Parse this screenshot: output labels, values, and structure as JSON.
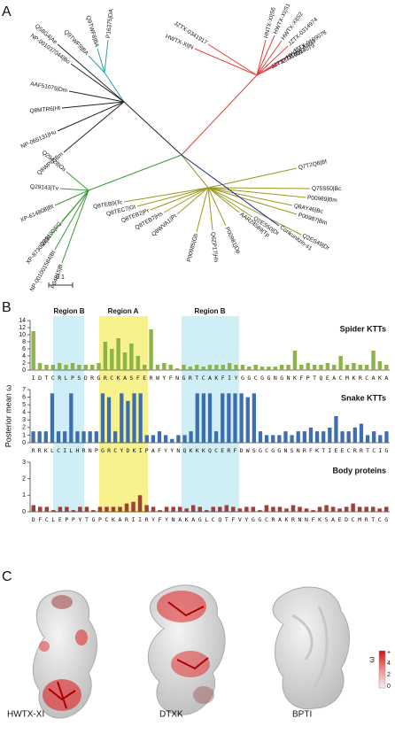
{
  "panels": {
    "a": "A",
    "b": "B",
    "c": "C"
  },
  "tree": {
    "leaves": [
      "JZTX-0341917",
      "HWTX-XI|N",
      "HNTX-XI|S6",
      "HWTX-XI|S1",
      "HWTX-XI|S2",
      "JZTX-0314974",
      "JZTX-0109078",
      "HWTX-XI|S3",
      "JZTX-0314079",
      "JZTX-0314007",
      "P16375|DA",
      "Q9TWF8|BA",
      "Q9TWF9|BA",
      "Q58G4|Ae",
      "NP-001037044|Bo",
      "AAF51075|Dm",
      "Q8MTR6|Ht",
      "NP-065131|Hu",
      "Q8WPI2|Bm",
      "Q29428|Os",
      "Q29143|Tv",
      "XP-614808|Bt",
      "Q29100|PG",
      "XP-873093|Bt",
      "NP-001001584|Bt",
      "P04815|B",
      "Q7T2Q6|Bf",
      "Q75S50|Bc",
      "P00989|Bm",
      "Q8AY46|Bc",
      "P00987|Bm",
      "Q2ES49|Dr",
      "Q2ES50|Dr",
      "AAR24589|Tp",
      "P00981|Dp",
      "Q6ZP17|Hh",
      "P00985|Gb",
      "Q8WVA1|Pt",
      "Q8TEB7|Hs",
      "Q8TEB2|Pr",
      "Q8TEC7|Gt",
      "Q8TEB9|Tc",
      "Conkunitzin-s1"
    ],
    "scale_label": "0.1"
  },
  "y_axis_label": "Posterior mean ω",
  "regions": [
    "Region B",
    "Region A",
    "Region B"
  ],
  "chart_data": [
    {
      "type": "bar",
      "title": "Spider KTTs",
      "color": "#8db34a",
      "ylim": [
        0,
        14
      ],
      "yticks": [
        0,
        2,
        4,
        6,
        8,
        10,
        12,
        14
      ],
      "categories": [
        "I",
        "D",
        "T",
        "C",
        "R",
        "L",
        "P",
        "S",
        "D",
        "R",
        "G",
        "R",
        "C",
        "K",
        "A",
        "S",
        "F",
        "E",
        "R",
        "W",
        "Y",
        "F",
        "N",
        "G",
        "R",
        "T",
        "C",
        "A",
        "K",
        "F",
        "I",
        "Y",
        "G",
        "G",
        "C",
        "G",
        "G",
        "N",
        "G",
        "N",
        "K",
        "F",
        "P",
        "T",
        "Q",
        "E",
        "A",
        "C",
        "M",
        "K",
        "R",
        "C",
        "A",
        "K",
        "A"
      ],
      "values": [
        11,
        2,
        1.5,
        1.5,
        2,
        1.5,
        2,
        1.5,
        1.5,
        1.5,
        2,
        8,
        6,
        9,
        5,
        7.5,
        4,
        1.5,
        11.5,
        1.5,
        2,
        1.5,
        0.5,
        1.5,
        1,
        1.5,
        1,
        1.5,
        1.5,
        1.5,
        2,
        1.5,
        1.5,
        1,
        1.5,
        1,
        1,
        1,
        1.5,
        1.5,
        5.5,
        1.5,
        2,
        1.5,
        1.5,
        2,
        1.5,
        4,
        1.5,
        2,
        1.5,
        1.5,
        5.5,
        2.5,
        1.5
      ]
    },
    {
      "type": "bar",
      "title": "Snake KTTs",
      "color": "#3d6fb0",
      "ylim": [
        0,
        7
      ],
      "yticks": [
        0,
        1,
        2,
        3,
        4,
        5,
        6,
        7
      ],
      "categories": [
        "R",
        "R",
        "K",
        "L",
        "C",
        "I",
        "L",
        "H",
        "R",
        "N",
        "P",
        "G",
        "R",
        "C",
        "Y",
        "D",
        "K",
        "I",
        "P",
        "A",
        "F",
        "Y",
        "Y",
        "N",
        "Q",
        "K",
        "K",
        "K",
        "Q",
        "C",
        "E",
        "R",
        "F",
        "D",
        "W",
        "S",
        "G",
        "C",
        "G",
        "G",
        "N",
        "S",
        "N",
        "R",
        "F",
        "K",
        "T",
        "I",
        "E",
        "E",
        "C",
        "R",
        "R",
        "T",
        "C",
        "I",
        "G"
      ],
      "values": [
        1.5,
        1.5,
        1.5,
        6.5,
        1.5,
        1.5,
        6.5,
        1.5,
        1.5,
        1.5,
        1.5,
        6.5,
        6,
        1.5,
        6.5,
        5.5,
        6.5,
        6.5,
        1,
        1,
        1.5,
        1,
        0.5,
        1,
        1,
        1.5,
        6.5,
        6.5,
        6.5,
        1.5,
        6.5,
        6.5,
        6.5,
        6.5,
        6,
        6.5,
        1.5,
        1,
        1,
        1,
        1.5,
        1,
        1.5,
        1.5,
        2,
        1.5,
        1.5,
        2,
        3.5,
        1.5,
        1.5,
        2,
        2.5,
        1,
        1.5,
        1,
        1.5
      ]
    },
    {
      "type": "bar",
      "title": "Body proteins",
      "color": "#a0403a",
      "ylim": [
        0,
        3
      ],
      "yticks": [
        0,
        1,
        2,
        3
      ],
      "categories": [
        "D",
        "F",
        "C",
        "L",
        "E",
        "P",
        "P",
        "Y",
        "T",
        "G",
        "P",
        "C",
        "K",
        "A",
        "R",
        "I",
        "I",
        "R",
        "Y",
        "F",
        "Y",
        "N",
        "A",
        "K",
        "A",
        "G",
        "L",
        "C",
        "Q",
        "T",
        "F",
        "V",
        "Y",
        "G",
        "G",
        "C",
        "R",
        "A",
        "K",
        "R",
        "N",
        "N",
        "F",
        "K",
        "S",
        "A",
        "E",
        "D",
        "C",
        "M",
        "R",
        "T",
        "C",
        "G"
      ],
      "values": [
        0.4,
        0.3,
        0.3,
        0.1,
        0.3,
        0.3,
        0.1,
        0.3,
        0.3,
        0.1,
        0.3,
        0.3,
        0.3,
        0.3,
        0.5,
        0.6,
        1,
        0.4,
        0.3,
        0.1,
        0.3,
        0.3,
        0.3,
        0.2,
        0.4,
        0.3,
        0.1,
        0.3,
        0.3,
        0.4,
        0.3,
        0.2,
        0.3,
        0.3,
        0.1,
        0.4,
        0.3,
        0.3,
        0.2,
        0.4,
        0.3,
        0.2,
        0.1,
        0.3,
        0.4,
        0.3,
        0.2,
        0.3,
        0.5,
        0.3,
        0.3,
        0.3,
        0.2,
        0.3
      ]
    }
  ],
  "structures": {
    "labels": [
      "HWTX-XI",
      "DTXK",
      "BPTI"
    ],
    "legend_title": "ω",
    "legend_labels": [
      "+",
      "4",
      "2",
      "0"
    ]
  }
}
